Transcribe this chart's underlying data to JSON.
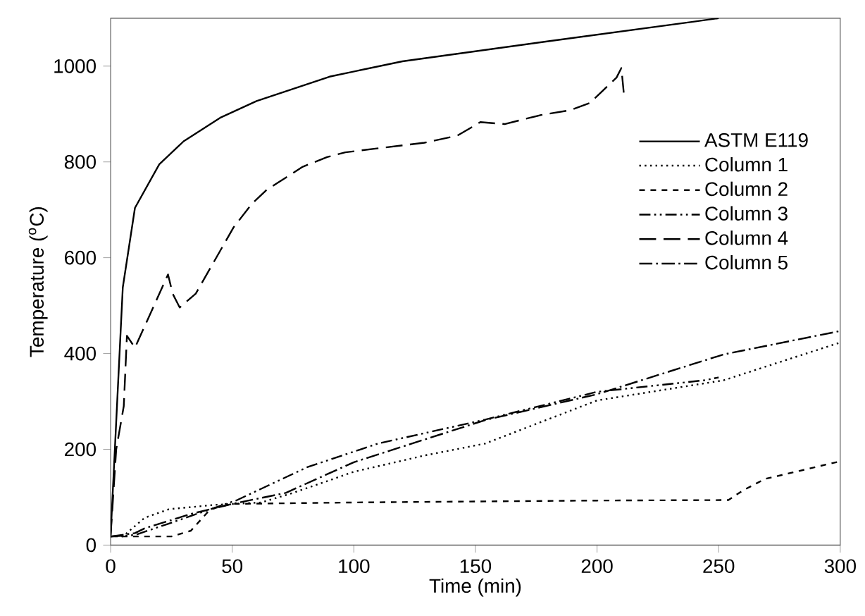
{
  "chart_data": {
    "type": "line",
    "xlabel": "Time (min)",
    "ylabel": "Temperature ($^{o}$C)",
    "xlim": [
      0,
      300
    ],
    "ylim": [
      0,
      1100
    ],
    "xticks": [
      0,
      50,
      100,
      150,
      200,
      250,
      300
    ],
    "yticks": [
      0,
      200,
      400,
      600,
      800,
      1000
    ],
    "legend": "right",
    "grid": false,
    "marker": "none",
    "series": [
      {
        "name": "ASTM E119",
        "color": "#000000",
        "line_style": "solid",
        "x": [
          0,
          5,
          10,
          20,
          30,
          45,
          60,
          90,
          120,
          180,
          240,
          250
        ],
        "values": [
          20,
          538,
          704,
          795,
          843,
          892,
          927,
          978,
          1010,
          1052,
          1093,
          1100
        ]
      },
      {
        "name": "Column 1",
        "color": "#000000",
        "line_style": "dotted",
        "x": [
          0,
          5,
          14,
          24,
          43,
          62,
          75,
          100,
          129,
          154,
          200,
          252,
          300
        ],
        "values": [
          18,
          18,
          57,
          75,
          84,
          89,
          109,
          153,
          187,
          212,
          302,
          344,
          423
        ]
      },
      {
        "name": "Column 2",
        "color": "#000000",
        "line_style": "dashed",
        "x": [
          0,
          25,
          33,
          41,
          50,
          100,
          150,
          200,
          254,
          260,
          269,
          300
        ],
        "values": [
          18,
          18,
          30,
          75,
          86,
          89,
          91,
          93,
          94,
          114,
          138,
          175
        ]
      },
      {
        "name": "Column 3",
        "color": "#000000",
        "line_style": "dashdotdot",
        "x": [
          0,
          10,
          24,
          52,
          81,
          110,
          154,
          200,
          244,
          250
        ],
        "values": [
          18,
          21,
          45,
          94,
          163,
          212,
          262,
          320,
          344,
          350
        ]
      },
      {
        "name": "Column 4",
        "color": "#000000",
        "line_style": "longdash",
        "x": [
          0,
          2.3,
          5.4,
          6.7,
          10,
          23.6,
          25.5,
          28.4,
          35,
          50.5,
          58,
          64,
          79,
          89,
          96.5,
          129,
          142.6,
          152,
          162,
          177,
          189,
          197,
          202,
          208,
          210,
          211
        ],
        "values": [
          20,
          200,
          290,
          437,
          412,
          565,
          525,
          496,
          525,
          663,
          712,
          741,
          790,
          810,
          820,
          840,
          855,
          883,
          879,
          898,
          908,
          923,
          947,
          976,
          996,
          943
        ]
      },
      {
        "name": "Column 5",
        "color": "#000000",
        "line_style": "dashdot",
        "x": [
          0,
          10,
          14,
          33,
          50,
          72,
          100,
          154,
          200,
          252,
          300
        ],
        "values": [
          18,
          25,
          35,
          65,
          86,
          109,
          173,
          261,
          315,
          398,
          447
        ]
      }
    ]
  }
}
